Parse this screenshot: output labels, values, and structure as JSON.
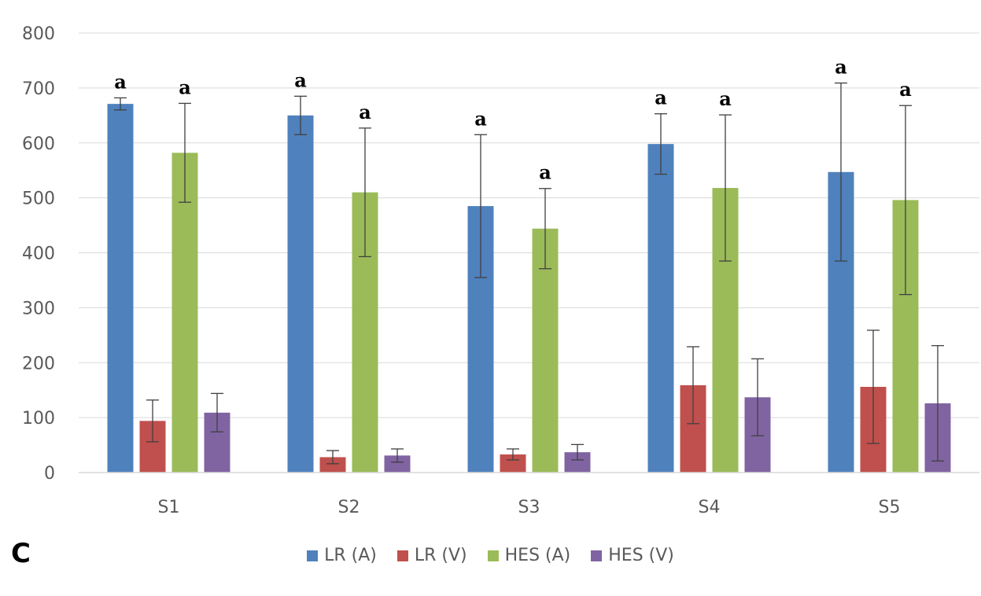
{
  "panel_label": "C",
  "chart_data": {
    "type": "bar",
    "categories": [
      "S1",
      "S2",
      "S3",
      "S4",
      "S5"
    ],
    "ylim": [
      0,
      800
    ],
    "yticks": [
      0,
      100,
      200,
      300,
      400,
      500,
      600,
      700,
      800
    ],
    "grid": true,
    "legend_position": "bottom",
    "series": [
      {
        "name": "LR (A)",
        "color": "#4f81bd",
        "values": [
          671,
          650,
          485,
          598,
          547
        ],
        "errors": [
          11,
          35,
          130,
          55,
          162
        ],
        "labels": [
          "a",
          "a",
          "a",
          "a",
          "a"
        ]
      },
      {
        "name": "LR (V)",
        "color": "#c0504d",
        "values": [
          94,
          28,
          33,
          159,
          156
        ],
        "errors": [
          38,
          12,
          10,
          70,
          103
        ],
        "labels": [
          "",
          "",
          "",
          "",
          ""
        ]
      },
      {
        "name": "HES (A)",
        "color": "#9bbb59",
        "values": [
          582,
          510,
          444,
          518,
          496
        ],
        "errors": [
          90,
          117,
          73,
          133,
          172
        ],
        "labels": [
          "a",
          "a",
          "a",
          "a",
          "a"
        ]
      },
      {
        "name": "HES (V)",
        "color": "#8064a2",
        "values": [
          109,
          31,
          37,
          137,
          126
        ],
        "errors": [
          35,
          12,
          14,
          70,
          105
        ],
        "labels": [
          "",
          "",
          "",
          "",
          ""
        ]
      }
    ]
  }
}
